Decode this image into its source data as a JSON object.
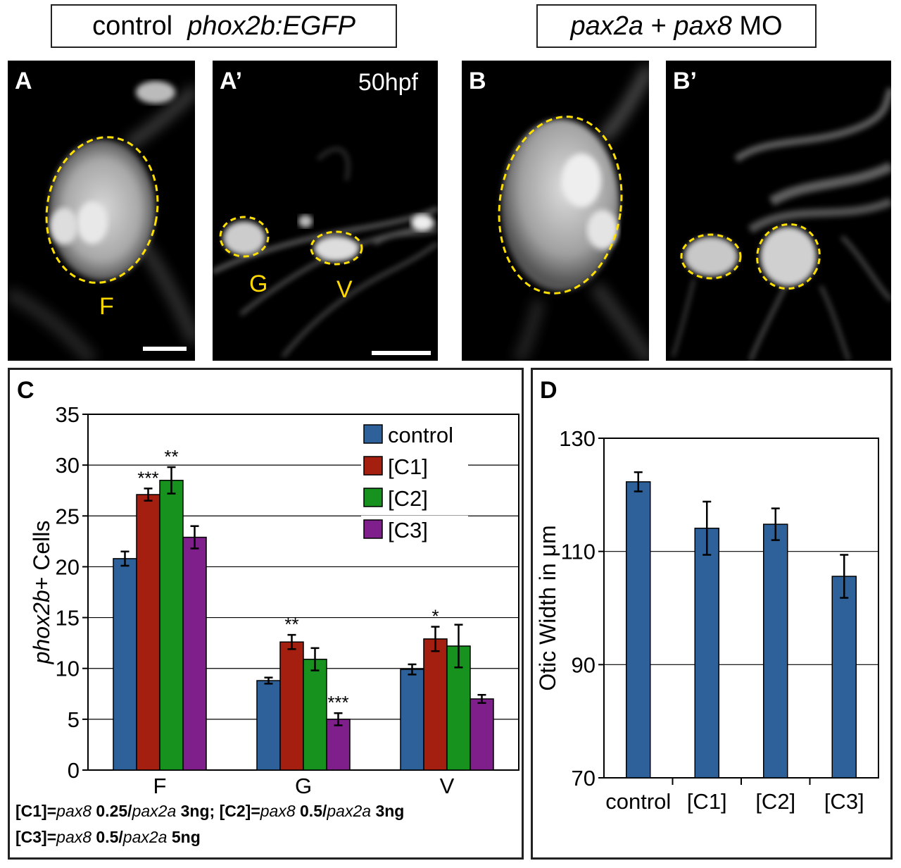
{
  "headers": {
    "control": {
      "plain": "control",
      "italic": "phox2b:EGFP"
    },
    "treatment": {
      "gene1": "pax2a",
      "plus": "+",
      "gene2": "pax8",
      "suffix": "MO"
    }
  },
  "panels": {
    "A": {
      "label": "A",
      "cell": "F"
    },
    "A_prime": {
      "label": "A’",
      "timepoint": "50hpf",
      "cells": [
        "G",
        "V"
      ]
    },
    "B": {
      "label": "B"
    },
    "B_prime": {
      "label": "B’"
    }
  },
  "colors": {
    "control": "#2e6199",
    "C1": "#a41f10",
    "C2": "#17921e",
    "C3": "#7e1f8b",
    "outline": "#ffe000"
  },
  "chart_data": [
    {
      "panel_label": "C",
      "type": "bar",
      "ylabel": {
        "italic": "phox2b",
        "plain": "+ Cells"
      },
      "ylim": [
        0,
        35
      ],
      "yticks": [
        0,
        5,
        10,
        15,
        20,
        25,
        30,
        35
      ],
      "categories": [
        "F",
        "G",
        "V"
      ],
      "legend": {
        "placement": "top-right"
      },
      "series": [
        {
          "name": "control",
          "values": [
            20.8,
            8.8,
            9.9
          ],
          "errors": [
            0.7,
            0.3,
            0.5
          ],
          "sig": [
            "",
            "",
            ""
          ]
        },
        {
          "name": "[C1]",
          "values": [
            27.1,
            12.6,
            12.9
          ],
          "errors": [
            0.6,
            0.7,
            1.2
          ],
          "sig": [
            "***",
            "**",
            "*"
          ]
        },
        {
          "name": "[C2]",
          "values": [
            28.5,
            10.9,
            12.2
          ],
          "errors": [
            1.3,
            1.1,
            2.1
          ],
          "sig": [
            "**",
            "",
            ""
          ]
        },
        {
          "name": "[C3]",
          "values": [
            22.9,
            5.0,
            7.0
          ],
          "errors": [
            1.1,
            0.6,
            0.4
          ],
          "sig": [
            "",
            "***",
            ""
          ]
        }
      ],
      "footnote": {
        "line1": [
          {
            "t": "[C1]=",
            "i": false
          },
          {
            "t": "pax8",
            "i": true
          },
          {
            "t": " 0.25/",
            "i": false
          },
          {
            "t": "pax2a",
            "i": true
          },
          {
            "t": " 3ng; ",
            "i": false
          },
          {
            "t": "[C2]=",
            "i": false
          },
          {
            "t": "pax8",
            "i": true
          },
          {
            "t": " 0.5/",
            "i": false
          },
          {
            "t": "pax2a",
            "i": true
          },
          {
            "t": " 3ng",
            "i": false
          }
        ],
        "line2": [
          {
            "t": "[C3]=",
            "i": false
          },
          {
            "t": "pax8",
            "i": true
          },
          {
            "t": " 0.5/",
            "i": false
          },
          {
            "t": "pax2a",
            "i": true
          },
          {
            "t": " 5ng",
            "i": false
          }
        ]
      }
    },
    {
      "panel_label": "D",
      "type": "bar",
      "ylabel": "Otic Width in μm",
      "ylim": [
        70,
        130
      ],
      "yticks": [
        70,
        90,
        110,
        130
      ],
      "categories": [
        "control",
        "[C1]",
        "[C2]",
        "[C3]"
      ],
      "values": [
        122.3,
        114.1,
        114.8,
        105.6
      ],
      "errors": [
        1.7,
        4.7,
        2.8,
        3.8
      ]
    }
  ]
}
